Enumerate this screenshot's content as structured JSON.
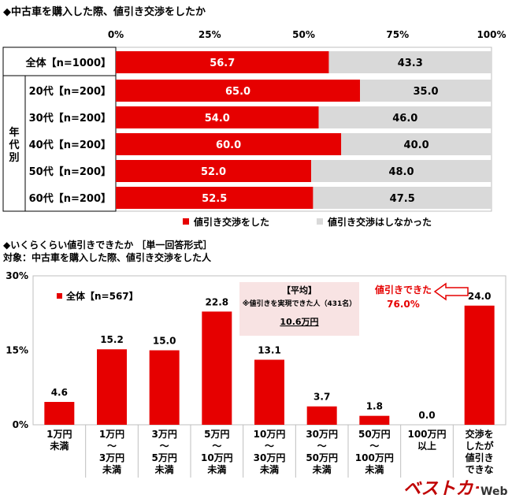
{
  "chart_data": [
    {
      "type": "bar",
      "orientation": "horizontal",
      "stacked": true,
      "title": "◆中古車を購入した際、値引き交渉をしたか",
      "xlim": [
        0,
        100
      ],
      "x_ticks": [
        "0%",
        "25%",
        "50%",
        "75%",
        "100%"
      ],
      "group_label": "年代別",
      "categories": [
        "全体【n=1000】",
        "20代【n=200】",
        "30代【n=200】",
        "40代【n=200】",
        "50代【n=200】",
        "60代【n=200】"
      ],
      "series": [
        {
          "name": "値引き交渉をした",
          "color": "#e60000",
          "values": [
            56.7,
            65.0,
            54.0,
            60.0,
            52.0,
            52.5
          ],
          "labels": [
            "56.7",
            "65.0",
            "54.0",
            "60.0",
            "52.0",
            "52.5"
          ]
        },
        {
          "name": "値引き交渉はしなかった",
          "color": "#d9d9d9",
          "values": [
            43.3,
            35.0,
            46.0,
            40.0,
            48.0,
            47.5
          ],
          "labels": [
            "43.3",
            "35.0",
            "46.0",
            "40.0",
            "48.0",
            "47.5"
          ]
        }
      ],
      "legend_position": "bottom"
    },
    {
      "type": "bar",
      "title": "◆いくらくらい値引きできたか ［単一回答形式］",
      "subtitle": "対象：中古車を購入した際、値引き交渉をした人",
      "ylim": [
        0,
        30
      ],
      "y_ticks": [
        "0%",
        "15%",
        "30%"
      ],
      "series_name": "全体【n=567】",
      "color": "#e60000",
      "categories": [
        [
          "1万円",
          "未満"
        ],
        [
          "1万円",
          "～",
          "3万円",
          "未満"
        ],
        [
          "3万円",
          "～",
          "5万円",
          "未満"
        ],
        [
          "5万円",
          "～",
          "10万円",
          "未満"
        ],
        [
          "10万円",
          "～",
          "30万円",
          "未満"
        ],
        [
          "30万円",
          "～",
          "50万円",
          "未満"
        ],
        [
          "50万円",
          "～",
          "100万円",
          "未満"
        ],
        [
          "100万円",
          "以上"
        ],
        [
          "交渉を",
          "したが",
          "値引き",
          "できな"
        ]
      ],
      "values": [
        4.6,
        15.2,
        15.0,
        22.8,
        13.1,
        3.7,
        1.8,
        0.0,
        24.0
      ],
      "labels": [
        "4.6",
        "15.2",
        "15.0",
        "22.8",
        "13.1",
        "3.7",
        "1.8",
        "0.0",
        "24.0"
      ],
      "average_box": {
        "title": "【平均】",
        "note": "※値引きを実現できた人（431名）",
        "value": "10.6万円"
      },
      "callout": {
        "line1": "値引きできた",
        "line2": "76.0%"
      }
    }
  ],
  "logo": {
    "text1": "ベストカー",
    "text2": "Web"
  }
}
